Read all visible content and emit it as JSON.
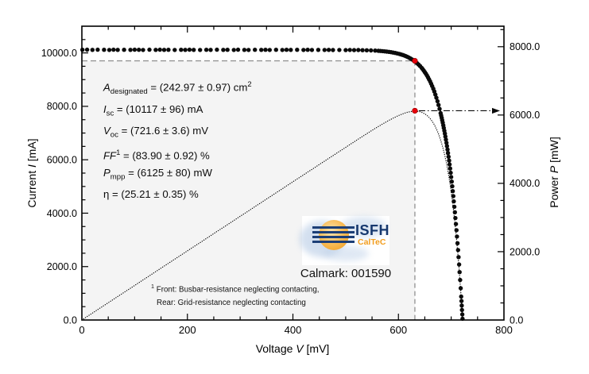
{
  "chart_data": {
    "type": "scatter",
    "x_axis": {
      "label_pre": "Voltage ",
      "label_var": "V",
      "label_post": " [mV]",
      "range": [
        0,
        800
      ],
      "major_ticks": [
        0,
        200,
        400,
        600,
        800
      ],
      "tick_labels": [
        "0",
        "200",
        "400",
        "600",
        "800"
      ],
      "minor_step": 50
    },
    "y_left_axis": {
      "label_pre": "Current ",
      "label_var": "I",
      "label_post": " [mA]",
      "range": [
        0,
        11000
      ],
      "major_ticks": [
        0,
        2000,
        4000,
        6000,
        8000,
        10000
      ],
      "tick_labels": [
        "0.0",
        "2000.0",
        "4000.0",
        "6000.0",
        "8000.0",
        "10000.0"
      ],
      "minor_step": 500
    },
    "y_right_axis": {
      "label_pre": "Power ",
      "label_var": "P",
      "label_post": " [mW]",
      "range": [
        0,
        8600
      ],
      "major_ticks": [
        0,
        2000,
        4000,
        6000,
        8000
      ],
      "tick_labels": [
        "0.0",
        "2000.0",
        "4000.0",
        "6000.0",
        "8000.0"
      ],
      "minor_step": 500
    },
    "grid": false,
    "iv_points": [
      [
        1,
        10117
      ],
      [
        10,
        10121
      ],
      [
        20,
        10114
      ],
      [
        30,
        10119
      ],
      [
        42,
        10116
      ],
      [
        52,
        10112
      ],
      [
        60,
        10120
      ],
      [
        68,
        10115
      ],
      [
        80,
        10118
      ],
      [
        92,
        10113
      ],
      [
        100,
        10120
      ],
      [
        108,
        10116
      ],
      [
        116,
        10111
      ],
      [
        128,
        10119
      ],
      [
        140,
        10115
      ],
      [
        148,
        10121
      ],
      [
        156,
        10113
      ],
      [
        164,
        10117
      ],
      [
        176,
        10112
      ],
      [
        188,
        10118
      ],
      [
        196,
        10114
      ],
      [
        204,
        10120
      ],
      [
        212,
        10115
      ],
      [
        224,
        10111
      ],
      [
        236,
        10118
      ],
      [
        244,
        10113
      ],
      [
        256,
        10119
      ],
      [
        268,
        10114
      ],
      [
        276,
        10117
      ],
      [
        288,
        10112
      ],
      [
        296,
        10119
      ],
      [
        308,
        10115
      ],
      [
        316,
        10110
      ],
      [
        328,
        10117
      ],
      [
        340,
        10113
      ],
      [
        348,
        10118
      ],
      [
        356,
        10112
      ],
      [
        368,
        10116
      ],
      [
        380,
        10111
      ],
      [
        388,
        10117
      ],
      [
        396,
        10113
      ],
      [
        408,
        10118
      ],
      [
        420,
        10112
      ],
      [
        428,
        10116
      ],
      [
        436,
        10110
      ],
      [
        448,
        10115
      ],
      [
        460,
        10110
      ],
      [
        468,
        10114
      ],
      [
        476,
        10108
      ],
      [
        488,
        10112
      ],
      [
        500,
        10106
      ],
      [
        508,
        10110
      ],
      [
        516,
        10104
      ],
      [
        524,
        10108
      ],
      [
        532,
        10101
      ],
      [
        540,
        10099
      ],
      [
        548,
        10094
      ],
      [
        556,
        10088
      ],
      [
        562,
        10078
      ],
      [
        566,
        10072
      ],
      [
        570,
        10066
      ],
      [
        574,
        10058
      ],
      [
        578,
        10049
      ],
      [
        582,
        10039
      ],
      [
        586,
        10027
      ],
      [
        590,
        10014
      ],
      [
        594,
        9998
      ],
      [
        598,
        9981
      ],
      [
        602,
        9960
      ],
      [
        605,
        9943
      ],
      [
        608,
        9924
      ],
      [
        611,
        9903
      ],
      [
        614,
        9879
      ],
      [
        617,
        9853
      ],
      [
        620,
        9823
      ],
      [
        623,
        9791
      ],
      [
        626,
        9755
      ],
      [
        629,
        9715
      ],
      [
        632,
        9671
      ],
      [
        635,
        9622
      ],
      [
        638,
        9567
      ],
      [
        641,
        9507
      ],
      [
        644,
        9440
      ],
      [
        646,
        9391
      ],
      [
        648,
        9338
      ],
      [
        650,
        9282
      ],
      [
        652,
        9222
      ],
      [
        654,
        9157
      ],
      [
        656,
        9088
      ],
      [
        658,
        9014
      ],
      [
        660,
        8935
      ],
      [
        662,
        8849
      ],
      [
        664,
        8758
      ],
      [
        666,
        8660
      ],
      [
        668,
        8555
      ],
      [
        670,
        8441
      ],
      [
        672,
        8321
      ],
      [
        674,
        8192
      ],
      [
        676,
        8052
      ],
      [
        678,
        7904
      ],
      [
        680,
        7744
      ],
      [
        681,
        7658
      ],
      [
        682,
        7573
      ],
      [
        683,
        7482
      ],
      [
        684,
        7390
      ],
      [
        685,
        7291
      ],
      [
        686,
        7192
      ],
      [
        687,
        7087
      ],
      [
        688,
        6981
      ],
      [
        689,
        6868
      ],
      [
        690,
        6753
      ],
      [
        691,
        6634
      ],
      [
        692,
        6512
      ],
      [
        693,
        6382
      ],
      [
        694,
        6251
      ],
      [
        695,
        6112
      ],
      [
        696,
        5970
      ],
      [
        697,
        5823
      ],
      [
        698,
        5671
      ],
      [
        699,
        5513
      ],
      [
        700,
        5352
      ],
      [
        701,
        5181
      ],
      [
        702,
        5007
      ],
      [
        703,
        4825
      ],
      [
        704,
        4637
      ],
      [
        705,
        4443
      ],
      [
        706,
        4239
      ],
      [
        707,
        4033
      ],
      [
        708,
        3818
      ],
      [
        709,
        3594
      ],
      [
        710,
        3362
      ],
      [
        711,
        3124
      ],
      [
        712,
        2874
      ],
      [
        713,
        2620
      ],
      [
        714,
        2354
      ],
      [
        715,
        2078
      ],
      [
        716,
        1793
      ],
      [
        717,
        1498
      ],
      [
        718,
        1189
      ],
      [
        719,
        876
      ],
      [
        719.5,
        712
      ],
      [
        720,
        541
      ],
      [
        720.5,
        376
      ],
      [
        721,
        209
      ],
      [
        721.5,
        47
      ]
    ],
    "power_curve": "P = V × I / 1000, derived from iv_points, plotted on right axis as dotted line",
    "mpp": {
      "v_mv": 631.2,
      "i_ma": 9703,
      "p_mw": 6125
    },
    "isc_ma": 10117,
    "voc_mv": 721.6
  },
  "results": {
    "lines": [
      {
        "v": "A",
        "it": true,
        "sb": "designated",
        "rest": " = (242.97 ± 0.97) cm",
        "sup2": "2"
      },
      {
        "v": "I",
        "it": true,
        "sb": "sc",
        "rest": " = (10117 ± 96) mA"
      },
      {
        "v": "V",
        "it": true,
        "sb": "oc",
        "rest": " = (721.6 ± 3.6) mV"
      },
      {
        "v": "FF",
        "it": true,
        "vs": "1",
        "rest": " = (83.90 ± 0.92) %"
      },
      {
        "v": "P",
        "it": true,
        "sb": "mpp",
        "rest": " = (6125 ± 80) mW"
      },
      {
        "v": "η",
        "it": false,
        "rest": " = (25.21 ± 0.35) %"
      }
    ]
  },
  "logo": {
    "org": "ISFH",
    "sub": "CalTeC",
    "sun_icon": "sun-with-louvre-bars"
  },
  "calmark": "Calmark: 001590",
  "footnote": {
    "sup": "1",
    "line1": "Front: Busbar-resistance neglecting contacting,",
    "line2": "Rear: Grid-resistance neglecting contacting"
  },
  "colors": {
    "marker_black": "#0b0b0b",
    "mpp_red": "#e8000b",
    "mpp_red_edge": "#8f0000",
    "guide_gray": "#909090",
    "shade_gray": "#f4f4f4",
    "axis_black": "#000000",
    "logo_navy": "#16386e",
    "logo_orange": "#f29d1e",
    "logo_blue": "#b9cde6"
  }
}
